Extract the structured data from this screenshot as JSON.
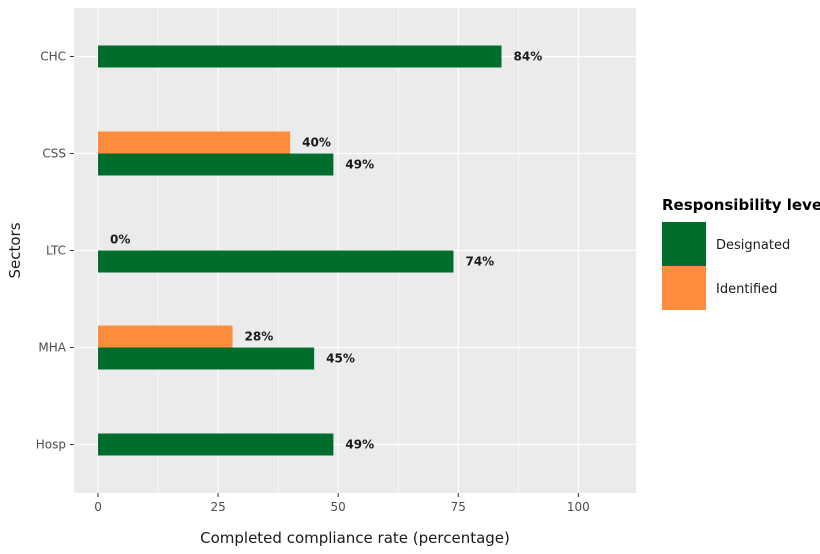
{
  "chart_data": {
    "type": "bar",
    "orientation": "horizontal",
    "categories": [
      "CHC",
      "CSS",
      "LTC",
      "MHA",
      "Hosp"
    ],
    "series": [
      {
        "name": "Designated",
        "color": "#006d2c",
        "values": [
          84,
          49,
          74,
          45,
          49
        ],
        "labels": [
          "84%",
          "49%",
          "74%",
          "45%",
          "49%"
        ]
      },
      {
        "name": "Identified",
        "color": "#fd8d3c",
        "values": [
          null,
          40,
          0,
          28,
          null
        ],
        "labels": [
          null,
          "40%",
          "0%",
          "28%",
          null
        ]
      }
    ],
    "xlabel": "Completed compliance rate (percentage)",
    "ylabel": "Sectors",
    "xlim": [
      -5,
      112
    ],
    "xticks": [
      0,
      25,
      50,
      75,
      100
    ],
    "grid": true,
    "legend": {
      "title": "Responsibility level",
      "position": "right",
      "entries": [
        "Designated",
        "Identified"
      ]
    },
    "colors": {
      "panel_background": "#ebebeb",
      "grid": "#ffffff"
    }
  }
}
